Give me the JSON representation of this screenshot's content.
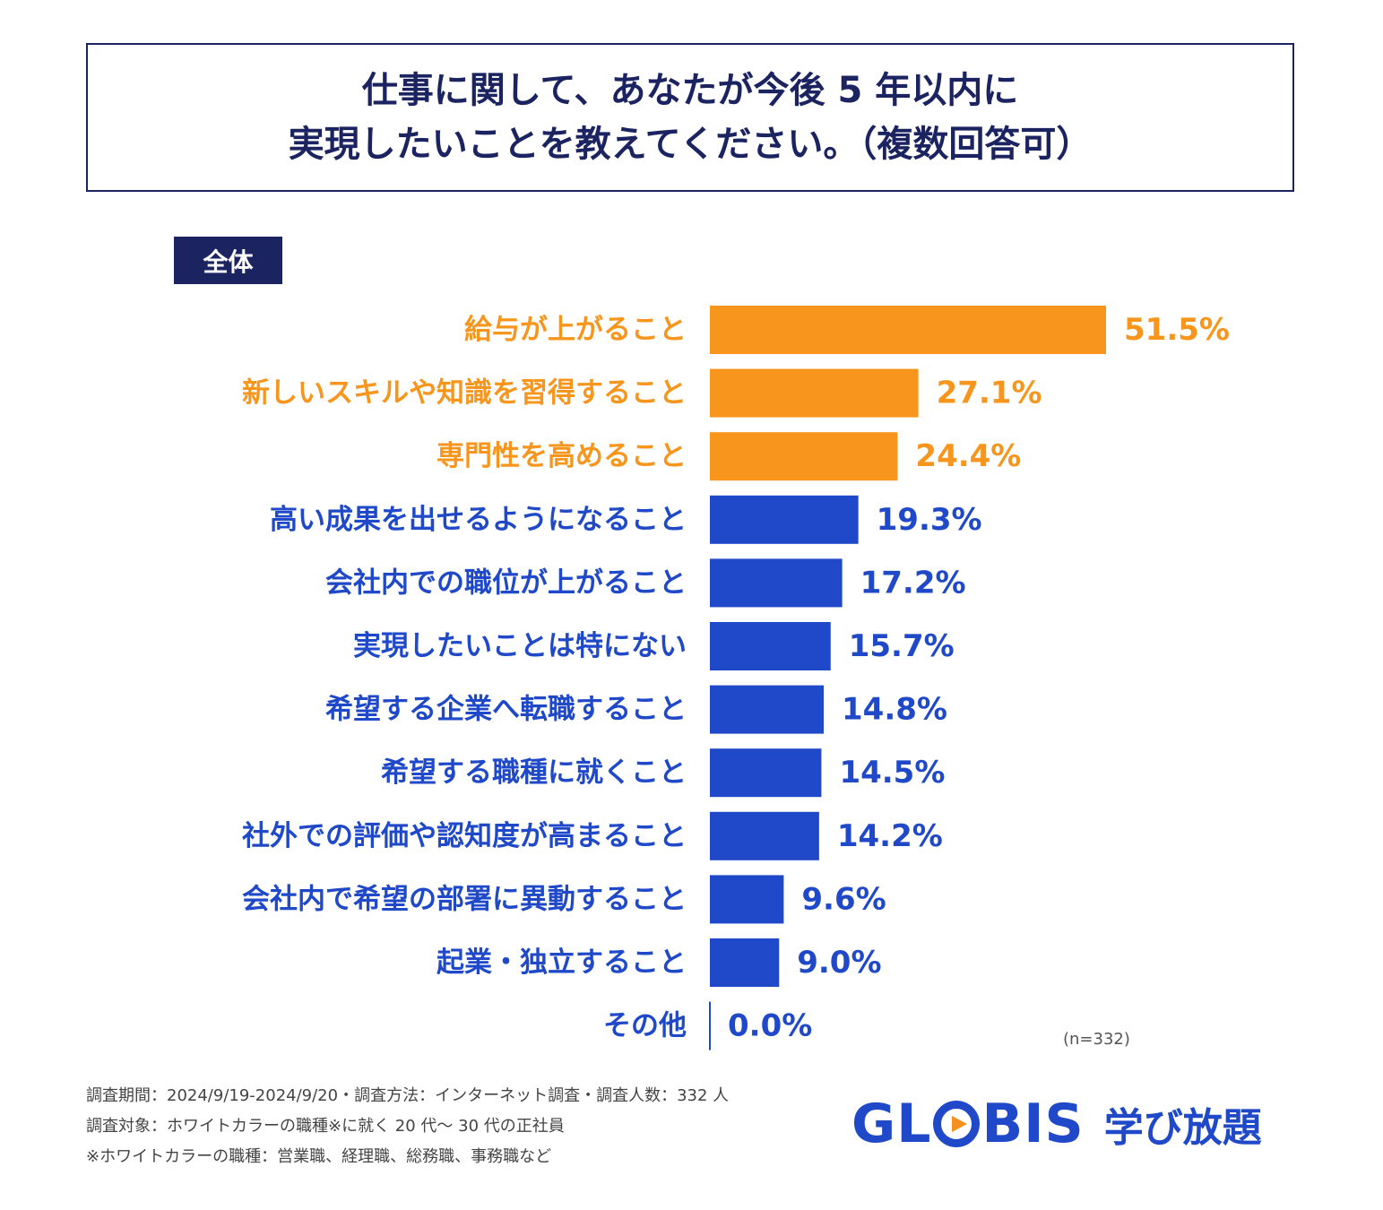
{
  "title": {
    "line1": "仕事に関して、あなたが今後 5 年以内に",
    "line2": "実現したいことを教えてください。（複数回答可）"
  },
  "segment_label": "全体",
  "sample_note": "(n=332)",
  "footnotes": [
    "調査期間：2024/9/19-2024/9/20・調査方法：インターネット調査・調査人数：332 人",
    "調査対象：ホワイトカラーの職種※に就く 20 代～ 30 代の正社員",
    "※ホワイトカラーの職種：営業職、経理職、総務職、事務職など"
  ],
  "logo": {
    "brand": "GLOBIS",
    "brand_left": "GL",
    "brand_right": "BIS",
    "sub": "学び放題"
  },
  "colors": {
    "highlight": "#f7951d",
    "primary": "#1f49c8",
    "navy": "#1b2461"
  },
  "chart_data": {
    "type": "bar",
    "orientation": "horizontal",
    "title": "仕事に関して、あなたが今後 5 年以内に実現したいことを教えてください。（複数回答可）",
    "unit": "%",
    "xlim": [
      0,
      51.5
    ],
    "categories": [
      "給与が上がること",
      "新しいスキルや知識を習得すること",
      "専門性を高めること",
      "高い成果を出せるようになること",
      "会社内での職位が上がること",
      "実現したいことは特にない",
      "希望する企業へ転職すること",
      "希望する職種に就くこと",
      "社外での評価や認知度が高まること",
      "会社内で希望の部署に異動すること",
      "起業・独立すること",
      "その他"
    ],
    "values": [
      51.5,
      27.1,
      24.4,
      19.3,
      17.2,
      15.7,
      14.8,
      14.5,
      14.2,
      9.6,
      9.0,
      0.0
    ],
    "labels": [
      "51.5%",
      "27.1%",
      "24.4%",
      "19.3%",
      "17.2%",
      "15.7%",
      "14.8%",
      "14.5%",
      "14.2%",
      "9.6%",
      "9.0%",
      "0.0%"
    ],
    "highlight_top": 3
  }
}
